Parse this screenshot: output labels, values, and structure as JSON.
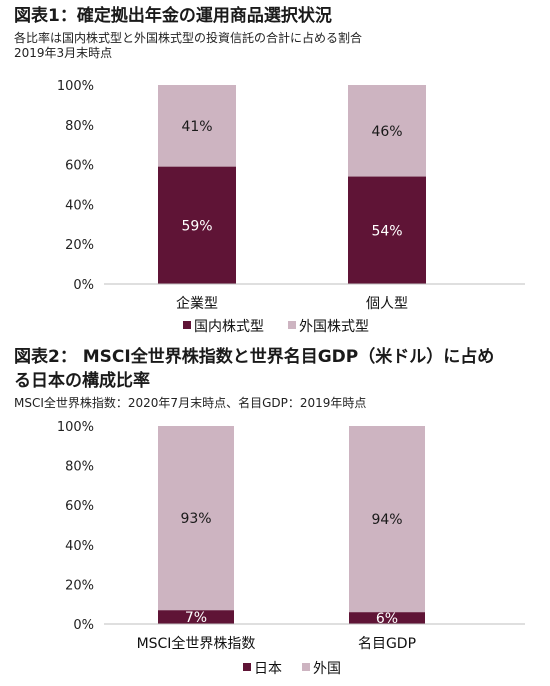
{
  "chart1": {
    "title": "図表1：確定拠出年金の運用商品選択状況",
    "subtitle1": "各比率は国内株式型と外国株式型の投資信託の合計に占める割合",
    "subtitle2": "2019年3月末時点"
  },
  "chart2": {
    "title1": "図表2： MSCI全世界株指数と世界名目GDP（米ドル）に占め",
    "title2": "る日本の構成比率",
    "subtitle1": "MSCI全世界株指数：2020年7月末時点、名目GDP：2019年時点"
  },
  "colors": {
    "dark": "#5f1436",
    "light": "#cdb4c1",
    "axis": "#bfbfbf"
  },
  "chart_data": [
    {
      "type": "bar",
      "stacked": true,
      "title": "図表1：確定拠出年金の運用商品選択状況",
      "categories": [
        "企業型",
        "個人型"
      ],
      "series": [
        {
          "name": "国内株式型",
          "values": [
            59,
            54
          ],
          "labels": [
            "59%",
            "54%"
          ]
        },
        {
          "name": "外国株式型",
          "values": [
            41,
            46
          ],
          "labels": [
            "41%",
            "46%"
          ]
        }
      ],
      "ylim": [
        0,
        100
      ],
      "yticks": [
        "0%",
        "20%",
        "40%",
        "60%",
        "80%",
        "100%"
      ],
      "legend": "bottom"
    },
    {
      "type": "bar",
      "stacked": true,
      "title": "図表2： MSCI全世界株指数と世界名目GDP（米ドル）に占める日本の構成比率",
      "categories": [
        "MSCI全世界株指数",
        "名目GDP"
      ],
      "series": [
        {
          "name": "日本",
          "values": [
            7,
            6
          ],
          "labels": [
            "7%",
            "6%"
          ]
        },
        {
          "name": "外国",
          "values": [
            93,
            94
          ],
          "labels": [
            "93%",
            "94%"
          ]
        }
      ],
      "ylim": [
        0,
        100
      ],
      "yticks": [
        "0%",
        "20%",
        "40%",
        "60%",
        "80%",
        "100%"
      ],
      "legend": "bottom"
    }
  ]
}
